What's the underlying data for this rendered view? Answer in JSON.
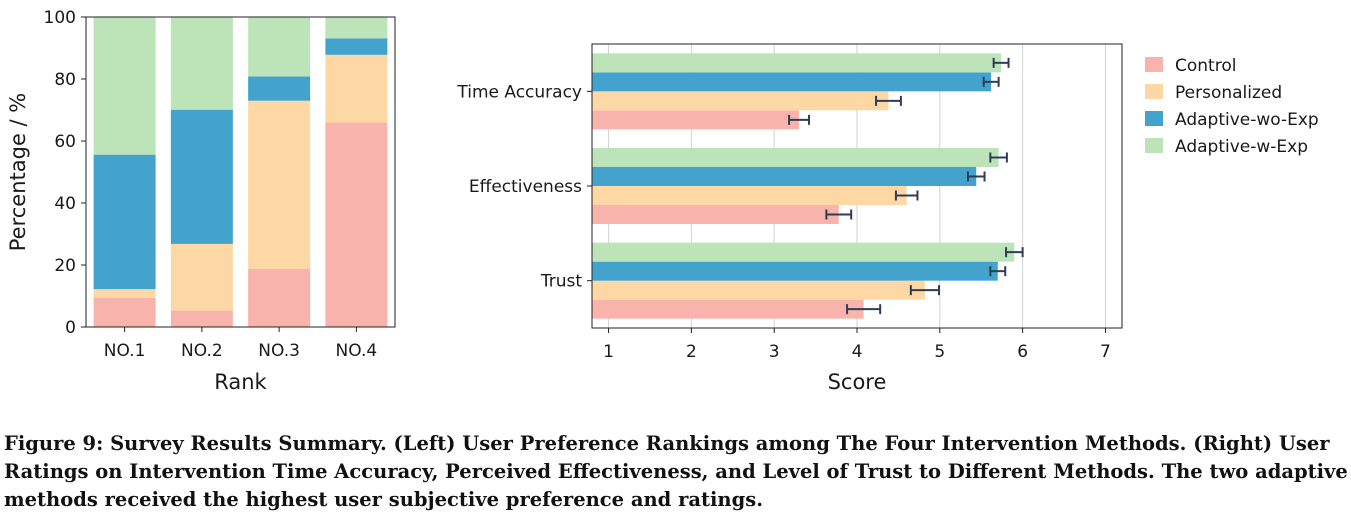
{
  "chart_data": [
    {
      "type": "bar",
      "stacked": true,
      "orientation": "vertical",
      "categories": [
        "NO.1",
        "NO.2",
        "NO.3",
        "NO.4"
      ],
      "series": [
        {
          "name": "Control",
          "color": "#f9b3ad",
          "values": [
            9.4,
            5.3,
            18.8,
            66.0
          ]
        },
        {
          "name": "Personalized",
          "color": "#fdd8a4",
          "values": [
            2.8,
            21.5,
            54.2,
            21.8
          ]
        },
        {
          "name": "Adaptive-wo-Exp",
          "color": "#43a3cd",
          "values": [
            43.4,
            43.3,
            7.8,
            5.3
          ]
        },
        {
          "name": "Adaptive-w-Exp",
          "color": "#bce4b8",
          "values": [
            44.4,
            29.9,
            19.2,
            6.9
          ]
        }
      ],
      "xlabel": "Rank",
      "ylabel": "Percentage / %",
      "ylim": [
        0,
        100
      ],
      "yticks": [
        0,
        20,
        40,
        60,
        80,
        100
      ],
      "grid": false
    },
    {
      "type": "bar",
      "orientation": "horizontal",
      "categories": [
        "Time Accuracy",
        "Effectiveness",
        "Trust"
      ],
      "series": [
        {
          "name": "Control",
          "color": "#f9b3ad",
          "values": [
            3.3,
            3.78,
            4.08
          ],
          "errors": [
            0.12,
            0.15,
            0.2
          ]
        },
        {
          "name": "Personalized",
          "color": "#fdd8a4",
          "values": [
            4.38,
            4.6,
            4.82
          ],
          "errors": [
            0.15,
            0.13,
            0.17
          ]
        },
        {
          "name": "Adaptive-wo-Exp",
          "color": "#43a3cd",
          "values": [
            5.62,
            5.44,
            5.7
          ],
          "errors": [
            0.09,
            0.1,
            0.09
          ]
        },
        {
          "name": "Adaptive-w-Exp",
          "color": "#bce4b8",
          "values": [
            5.74,
            5.71,
            5.9
          ],
          "errors": [
            0.09,
            0.1,
            0.1
          ]
        }
      ],
      "xlabel": "Score",
      "ylabel": "",
      "xlim": [
        0.8,
        7.2
      ],
      "xticks": [
        1,
        2,
        3,
        4,
        5,
        6,
        7
      ],
      "grid": true,
      "legend": [
        "Control",
        "Personalized",
        "Adaptive-wo-Exp",
        "Adaptive-w-Exp"
      ],
      "legend_position": "right"
    }
  ],
  "caption": "Figure 9: Survey Results Summary. (Left) User Preference Rankings among The Four Intervention Methods. (Right) User Ratings on Intervention Time Accuracy, Perceived Effectiveness, and Level of Trust to Different Methods. The two adaptive methods received the highest user subjective preference and ratings."
}
